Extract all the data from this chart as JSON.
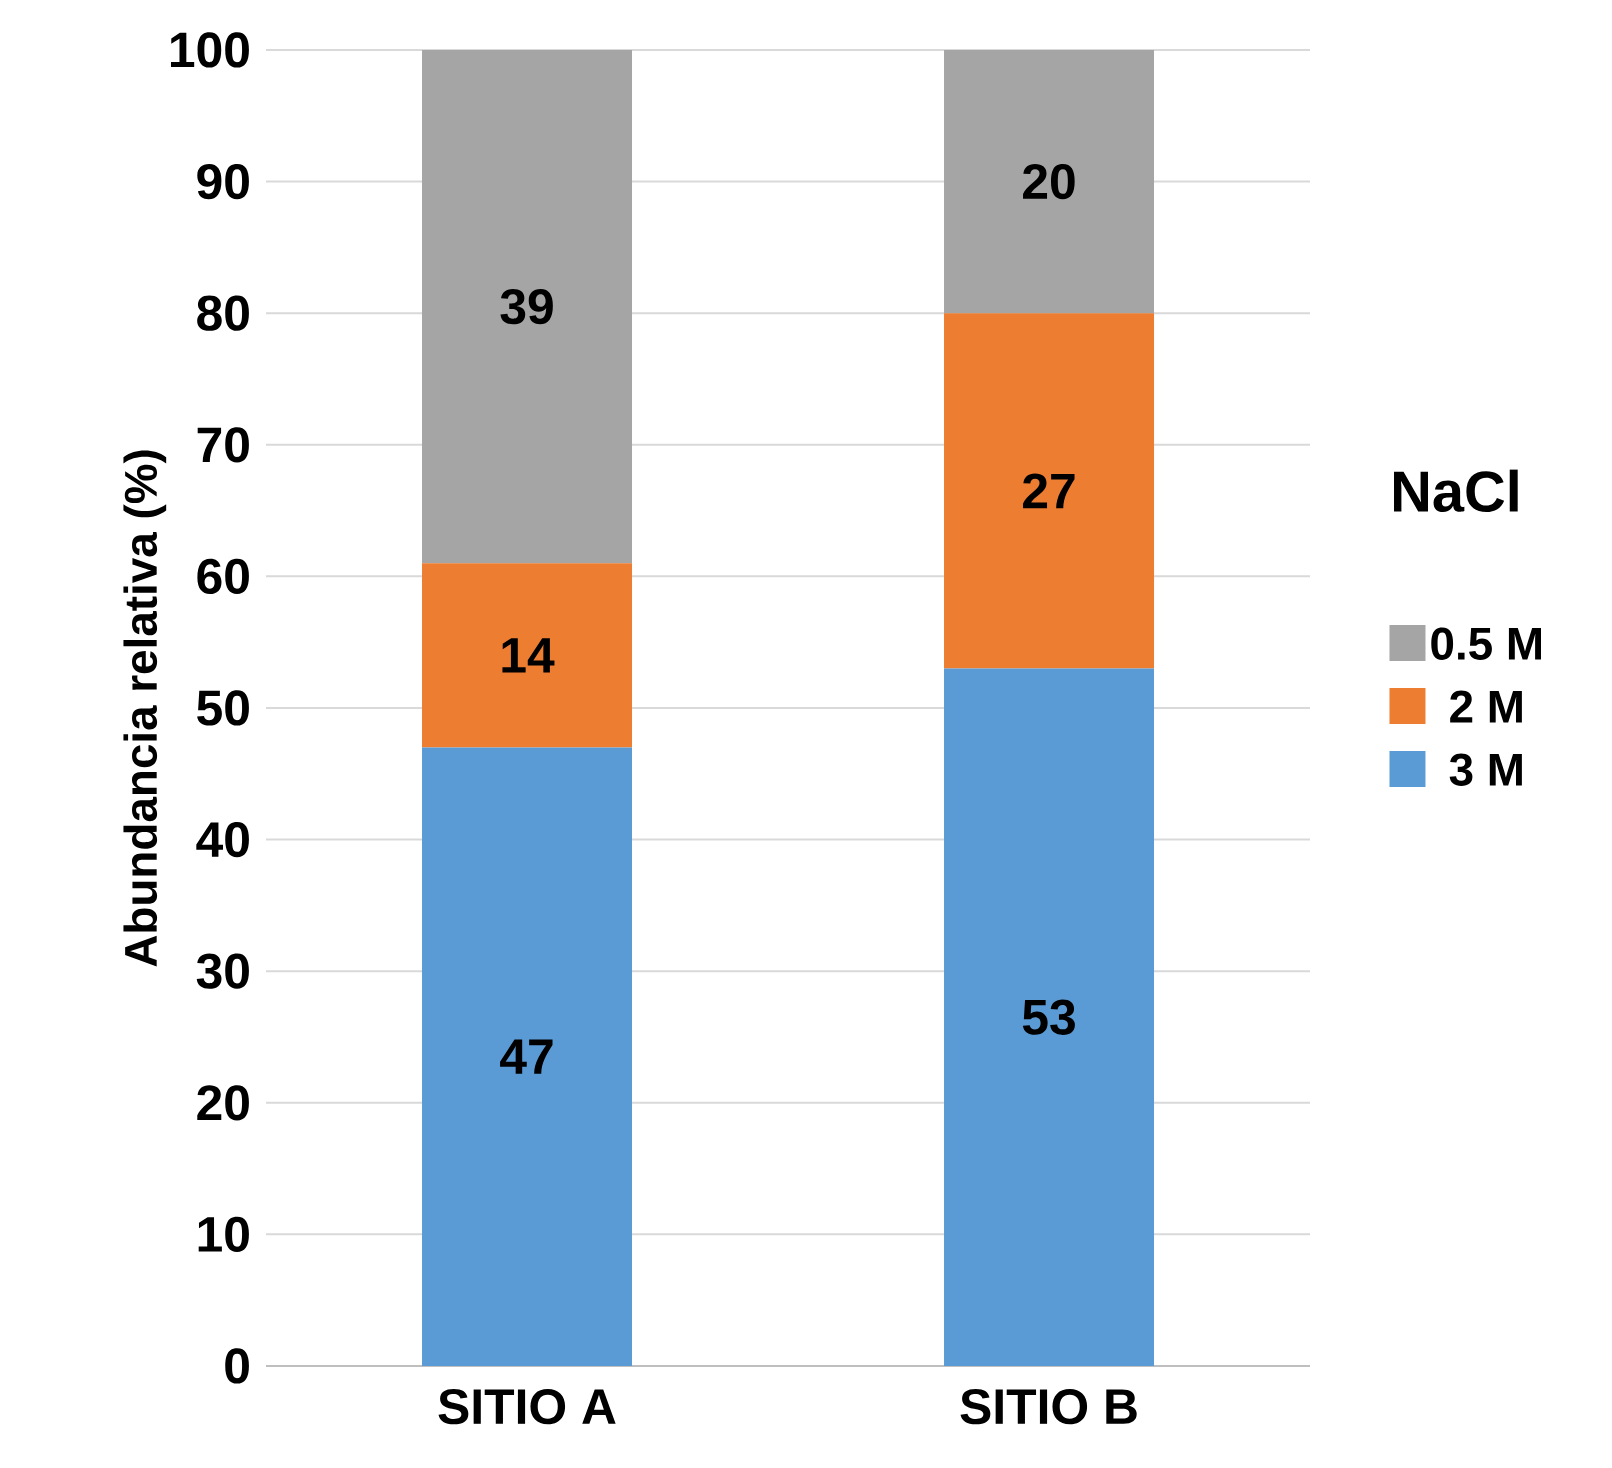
{
  "chart_data": {
    "type": "bar",
    "stacked": true,
    "ylabel": "Abundancia relativa (%)",
    "legend_title": "NaCl",
    "categories": [
      "SITIO A",
      "SITIO B"
    ],
    "series": [
      {
        "name": "3 M",
        "color": "#5b9bd5",
        "values": [
          47,
          53
        ]
      },
      {
        "name": "2 M",
        "color": "#ed7d31",
        "values": [
          14,
          27
        ]
      },
      {
        "name": "0.5 M",
        "color": "#a5a5a5",
        "values": [
          39,
          20
        ]
      }
    ],
    "ylim": [
      0,
      100
    ],
    "yticks": [
      0,
      10,
      20,
      30,
      40,
      50,
      60,
      70,
      80,
      90,
      100
    ],
    "grid": "y",
    "legend": "right",
    "data_labels": true
  }
}
